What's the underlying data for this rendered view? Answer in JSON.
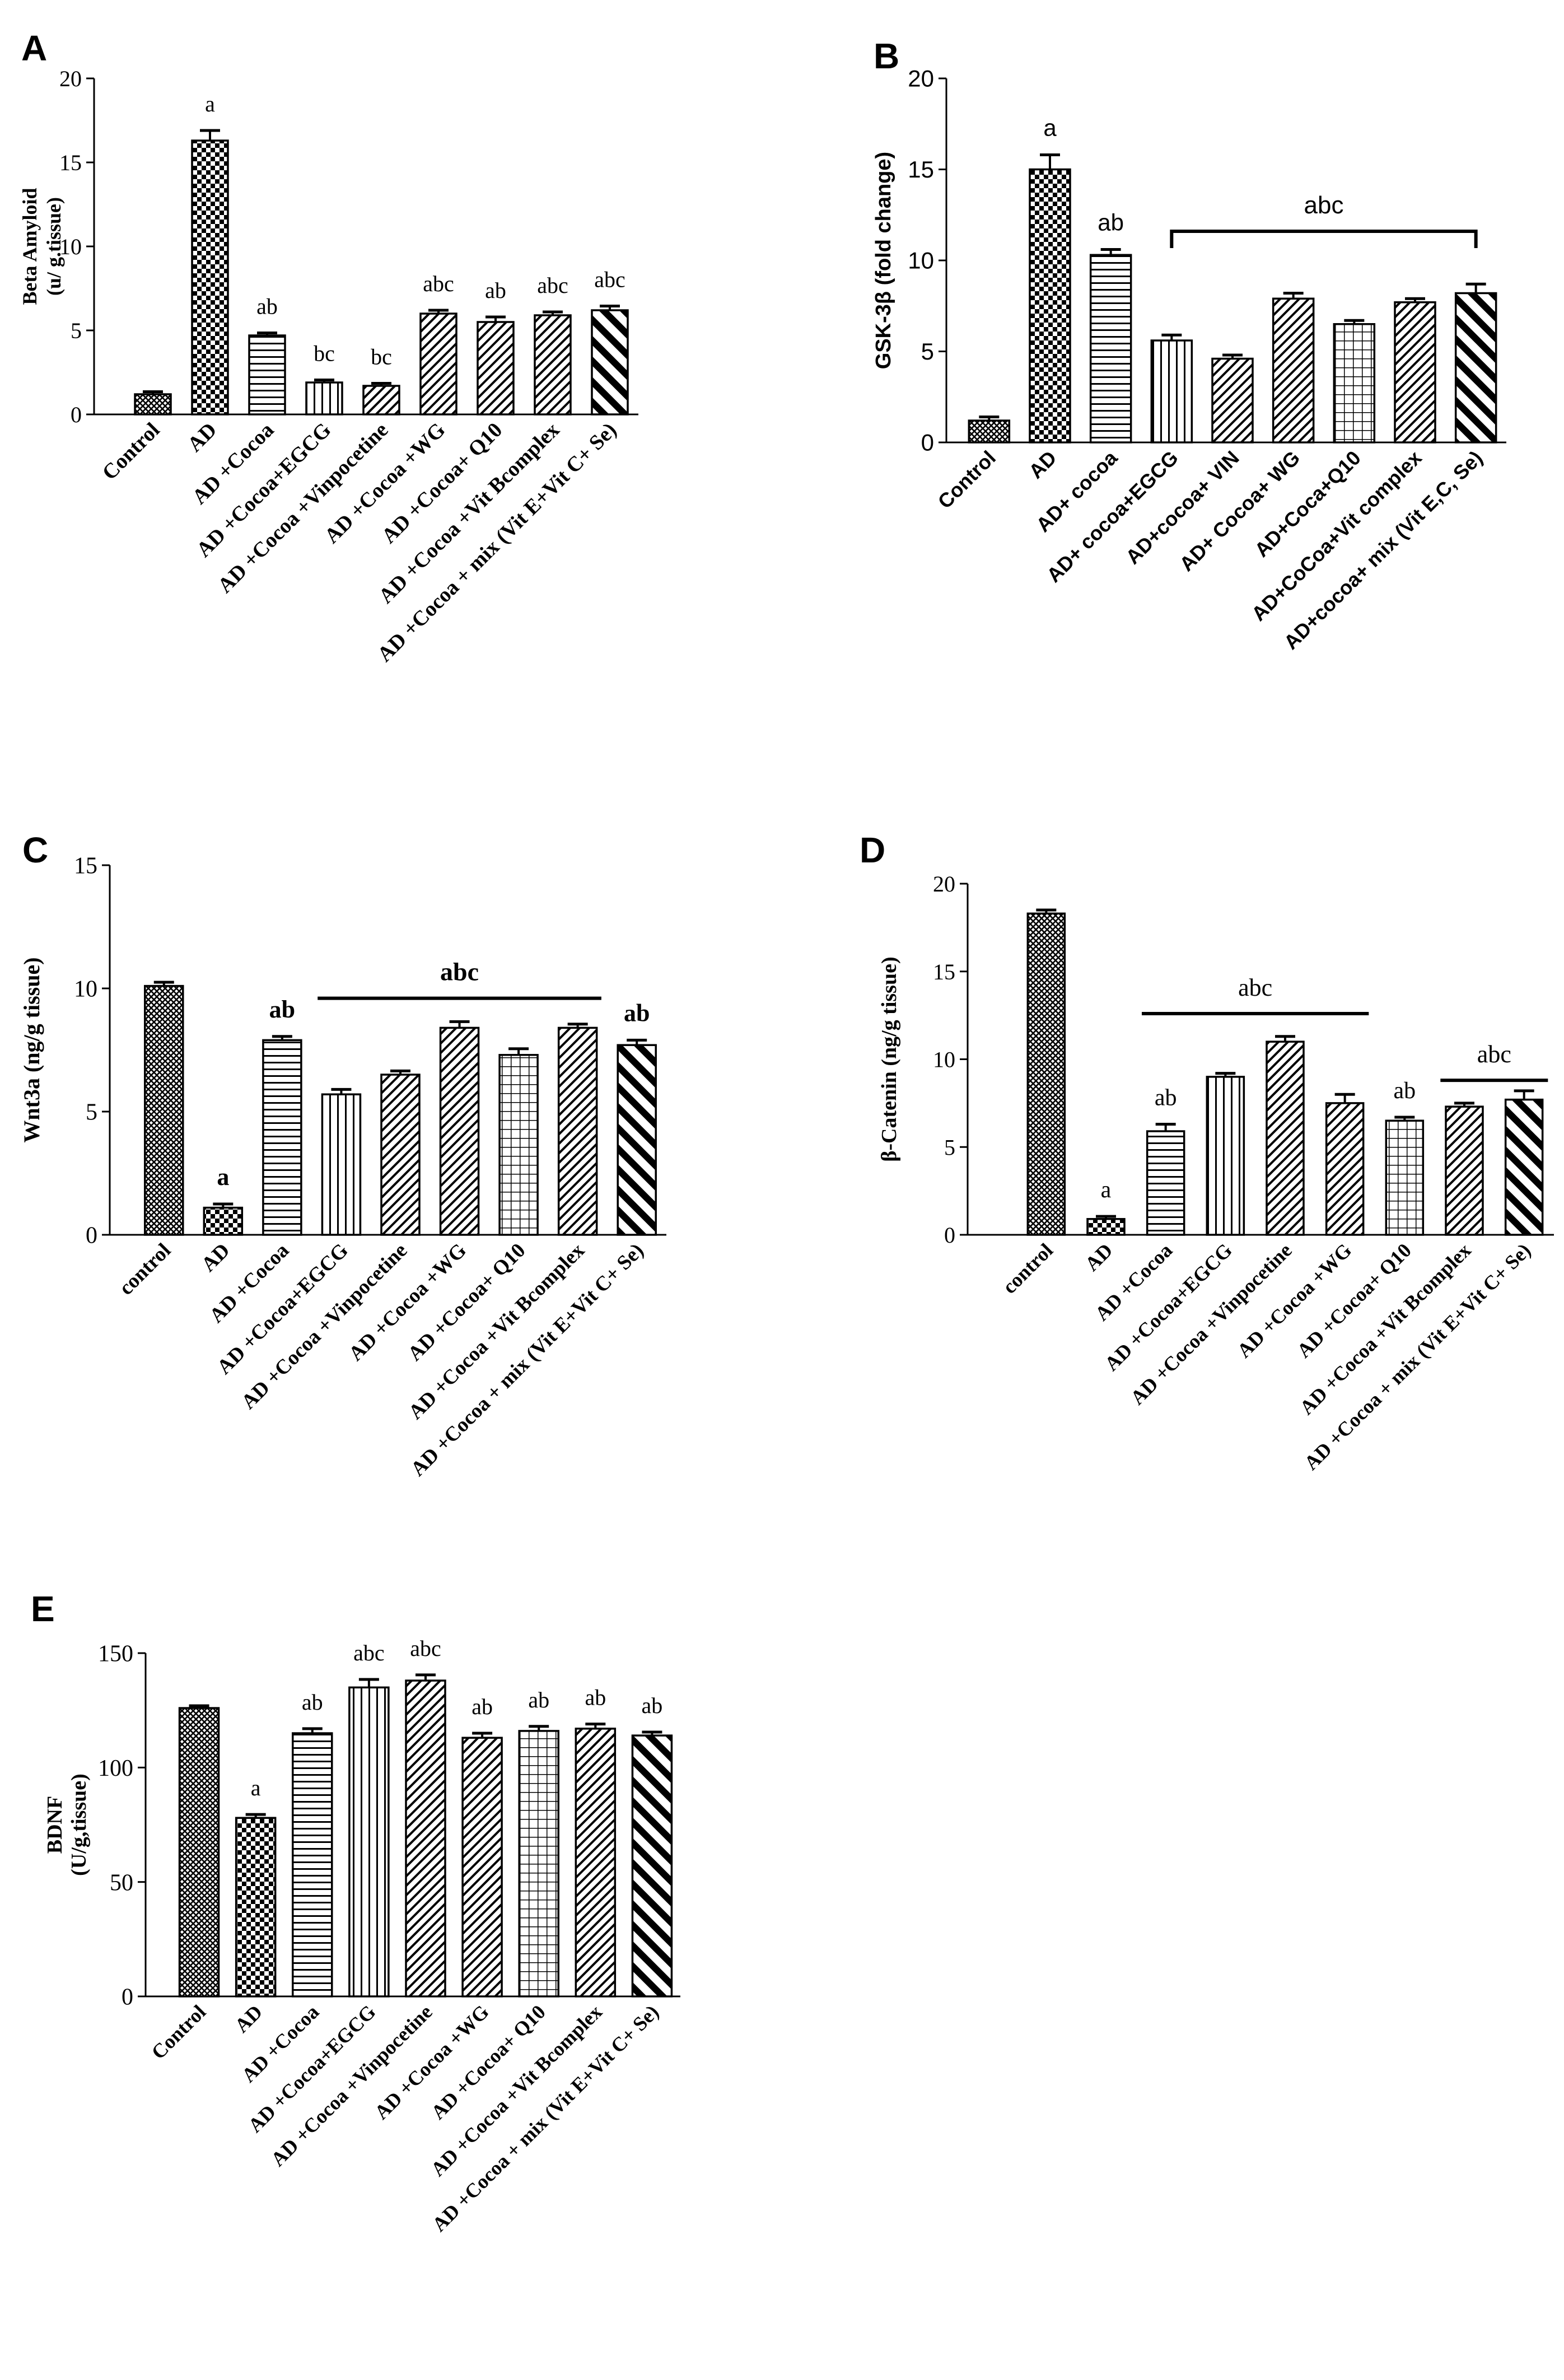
{
  "figure": {
    "background": "#ffffff",
    "ink": "#000000"
  },
  "chart_data": [
    {
      "panel": "A",
      "type": "bar",
      "font": "serif",
      "ylabel_lines": [
        "Beta Amyloid",
        "(u/ g.tissue)"
      ],
      "ylim": [
        0,
        20
      ],
      "yticks": [
        0,
        5,
        10,
        15,
        20
      ],
      "categories": [
        "Control",
        "AD",
        "AD +Cocoa",
        "AD +Cocoa+EGCG",
        "AD +Cocoa +Vinpocetine",
        "AD +Cocoa +WG",
        "AD +Cocoa+ Q10",
        "AD +Cocoa +Vit Bcomplex",
        "AD +Cocoa + mix (Vit E+Vit C+ Se)"
      ],
      "values": [
        1.2,
        16.3,
        4.7,
        1.9,
        1.7,
        6.0,
        5.5,
        5.9,
        6.2
      ],
      "errors": [
        0.15,
        0.6,
        0.15,
        0.15,
        0.15,
        0.2,
        0.3,
        0.2,
        0.25
      ],
      "patterns": [
        "cross",
        "checker",
        "hlines",
        "vlines",
        "diag",
        "diag",
        "diag",
        "diag",
        "diagbold"
      ],
      "bar_labels": [
        "",
        "a",
        "ab",
        "bc",
        "bc",
        "abc",
        "ab",
        "abc",
        "abc"
      ],
      "brackets": []
    },
    {
      "panel": "B",
      "type": "bar",
      "font": "sans",
      "ylabel_lines": [
        "GSK-3β (fold change)"
      ],
      "ylim": [
        0,
        20
      ],
      "yticks": [
        0,
        5,
        10,
        15,
        20
      ],
      "categories": [
        "Control",
        "AD",
        "AD+ cocoa",
        "AD+ cocoa+EGCG",
        "AD+cocoa+ VIN",
        "AD+ Cocoa+ WG",
        "AD+Coca+Q10",
        "AD+CoCoa+Vit complex",
        "AD+cocoa+ mix (Vit E,C, Se)"
      ],
      "values": [
        1.2,
        15.0,
        10.3,
        5.6,
        4.6,
        7.9,
        6.5,
        7.7,
        8.2
      ],
      "errors": [
        0.2,
        0.8,
        0.3,
        0.3,
        0.2,
        0.3,
        0.2,
        0.2,
        0.5
      ],
      "patterns": [
        "cross",
        "checker",
        "hlines",
        "vlines",
        "diag",
        "diag",
        "grid",
        "diag",
        "diagbold"
      ],
      "bar_labels": [
        "",
        "a",
        "ab",
        "",
        "",
        "",
        "",
        "",
        ""
      ],
      "brackets": [
        {
          "from": 3,
          "to": 8,
          "label": "abc",
          "type": "bracket",
          "level": 11.6
        }
      ]
    },
    {
      "panel": "C",
      "type": "bar",
      "font": "serif",
      "ylabel_lines": [
        "Wnt3a (ng/g tissue)"
      ],
      "ylim": [
        0,
        15
      ],
      "yticks": [
        0,
        5,
        10,
        15
      ],
      "categories": [
        "control",
        "AD",
        "AD +Cocoa",
        "AD +Cocoa+EGCG",
        "AD +Cocoa +Vinpocetine",
        "AD +Cocoa +WG",
        "AD +Cocoa+ Q10",
        "AD +Cocoa +Vit Bcomplex",
        "AD +Cocoa + mix (Vit E+Vit C+ Se)"
      ],
      "values": [
        10.1,
        1.1,
        7.9,
        5.7,
        6.5,
        8.4,
        7.3,
        8.4,
        7.7
      ],
      "errors": [
        0.15,
        0.15,
        0.15,
        0.2,
        0.15,
        0.25,
        0.25,
        0.15,
        0.2
      ],
      "patterns": [
        "cross",
        "checker",
        "hlines",
        "vlines",
        "diag",
        "diag",
        "grid",
        "diag",
        "diagbold"
      ],
      "bar_labels": [
        "",
        "a",
        "ab",
        "",
        "",
        "",
        "",
        "",
        "ab"
      ],
      "brackets": [
        {
          "from": 3,
          "to": 7,
          "label": "abc",
          "type": "line",
          "level": 9.6
        }
      ]
    },
    {
      "panel": "D",
      "type": "bar",
      "font": "serif",
      "ylabel_lines": [
        "β-Catenin (ng/g tissue)"
      ],
      "ylim": [
        0,
        20
      ],
      "yticks": [
        0,
        5,
        10,
        15,
        20
      ],
      "categories": [
        "control",
        "AD",
        "AD +Cocoa",
        "AD +Cocoa+EGCG",
        "AD +Cocoa +Vinpocetine",
        "AD +Cocoa +WG",
        "AD +Cocoa+ Q10",
        "AD +Cocoa +Vit Bcomplex",
        "AD +Cocoa + mix (Vit E+Vit C+ Se)"
      ],
      "values": [
        18.3,
        0.9,
        5.9,
        9.0,
        11.0,
        7.5,
        6.5,
        7.3,
        7.7
      ],
      "errors": [
        0.2,
        0.15,
        0.4,
        0.2,
        0.3,
        0.5,
        0.2,
        0.2,
        0.5
      ],
      "patterns": [
        "cross",
        "checker",
        "hlines",
        "vlines",
        "diag",
        "diag",
        "grid",
        "diag",
        "diagbold"
      ],
      "bar_labels": [
        "",
        "a",
        "ab",
        "",
        "",
        "",
        "ab",
        "",
        ""
      ],
      "brackets": [
        {
          "from": 2,
          "to": 5,
          "label": "abc",
          "type": "line",
          "level": 12.6
        },
        {
          "from": 7,
          "to": 8,
          "label": "abc",
          "type": "line",
          "level": 8.8
        }
      ]
    },
    {
      "panel": "E",
      "type": "bar",
      "font": "serif",
      "ylabel_lines": [
        "BDNF",
        "(U/g,tissue)"
      ],
      "ylim": [
        0,
        150
      ],
      "yticks": [
        0,
        50,
        100,
        150
      ],
      "categories": [
        "Control",
        "AD",
        "AD +Cocoa",
        "AD +Cocoa+EGCG",
        "AD +Cocoa +Vinpocetine",
        "AD +Cocoa +WG",
        "AD +Cocoa+ Q10",
        "AD +Cocoa +Vit Bcomplex",
        "AD +Cocoa + mix (Vit E+Vit C+ Se)"
      ],
      "values": [
        126,
        78,
        115,
        135,
        138,
        113,
        116,
        117,
        114
      ],
      "errors": [
        1,
        1.5,
        2,
        3.5,
        2.5,
        2,
        2,
        2,
        1.5
      ],
      "patterns": [
        "cross",
        "checker",
        "hlines",
        "vlines",
        "diag",
        "diag",
        "grid",
        "diag",
        "diagbold"
      ],
      "bar_labels": [
        "",
        "a",
        "ab",
        "abc",
        "abc",
        "ab",
        "ab",
        "ab",
        "ab"
      ],
      "brackets": []
    }
  ]
}
